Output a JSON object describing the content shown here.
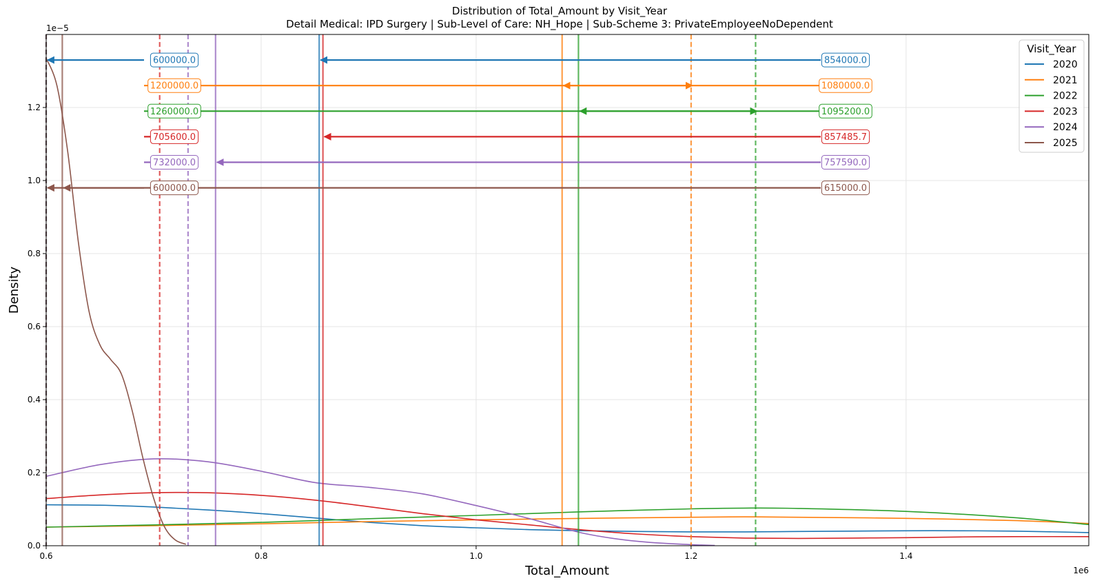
{
  "chart_data": {
    "type": "line",
    "title": "Distribution of Total_Amount by Visit_Year",
    "subtitle": "Detail Medical: IPD Surgery | Sub-Level of Care: NH_Hope | Sub-Scheme 3: PrivateEmployeeNoDependent",
    "xlabel": "Total_Amount",
    "ylabel": "Density",
    "x_offset_label": "1e6",
    "y_offset_label": "1e−5",
    "xlim": [
      600000,
      1570000
    ],
    "ylim": [
      0,
      1.4e-05
    ],
    "x_ticks": [
      {
        "value": 600000,
        "label": "0.6"
      },
      {
        "value": 800000,
        "label": "0.8"
      },
      {
        "value": 1000000,
        "label": "1.0"
      },
      {
        "value": 1200000,
        "label": "1.2"
      },
      {
        "value": 1400000,
        "label": "1.4"
      }
    ],
    "y_ticks": [
      {
        "value": 0,
        "label": "0.0"
      },
      {
        "value": 2e-06,
        "label": "0.2"
      },
      {
        "value": 4e-06,
        "label": "0.4"
      },
      {
        "value": 6e-06,
        "label": "0.6"
      },
      {
        "value": 8e-06,
        "label": "0.8"
      },
      {
        "value": 1e-05,
        "label": "1.0"
      },
      {
        "value": 1.2e-05,
        "label": "1.2"
      }
    ],
    "grid": true,
    "legend": {
      "title": "Visit_Year",
      "position": "top-right"
    },
    "series": [
      {
        "name": "2020",
        "color": "#1f77b4",
        "mean": 854000,
        "median": 600000,
        "mean_label": "854000.0",
        "median_label": "600000.0",
        "annotation_y": 1.33e-05,
        "points": [
          [
            600000,
            1.12e-06
          ],
          [
            650000,
            1.11e-06
          ],
          [
            700000,
            1.06e-06
          ],
          [
            750000,
            9.8e-07
          ],
          [
            800000,
            8.8e-07
          ],
          [
            850000,
            7.6e-07
          ],
          [
            900000,
            6.4e-07
          ],
          [
            950000,
            5.5e-07
          ],
          [
            1000000,
            4.9e-07
          ],
          [
            1050000,
            4.4e-07
          ],
          [
            1100000,
            4.1e-07
          ],
          [
            1150000,
            3.9e-07
          ],
          [
            1200000,
            3.8e-07
          ],
          [
            1250000,
            3.8e-07
          ],
          [
            1300000,
            3.9e-07
          ],
          [
            1350000,
            4e-07
          ],
          [
            1400000,
            4.1e-07
          ],
          [
            1450000,
            4.1e-07
          ],
          [
            1500000,
            4e-07
          ],
          [
            1570000,
            3.6e-07
          ]
        ]
      },
      {
        "name": "2021",
        "color": "#ff7f0e",
        "mean": 1080000,
        "median": 1200000,
        "mean_label": "1080000.0",
        "median_label": "1200000.0",
        "annotation_y": 1.26e-05,
        "points": [
          [
            600000,
            5.1e-07
          ],
          [
            700000,
            5.5e-07
          ],
          [
            800000,
            6e-07
          ],
          [
            900000,
            6.6e-07
          ],
          [
            1000000,
            7.1e-07
          ],
          [
            1100000,
            7.5e-07
          ],
          [
            1200000,
            7.8e-07
          ],
          [
            1250000,
            7.9e-07
          ],
          [
            1300000,
            7.8e-07
          ],
          [
            1400000,
            7.5e-07
          ],
          [
            1500000,
            6.9e-07
          ],
          [
            1570000,
            6.1e-07
          ]
        ]
      },
      {
        "name": "2022",
        "color": "#2ca02c",
        "mean": 1095200,
        "median": 1260000,
        "mean_label": "1095200.0",
        "median_label": "1260000.0",
        "annotation_y": 1.19e-05,
        "points": [
          [
            600000,
            5.1e-07
          ],
          [
            700000,
            5.7e-07
          ],
          [
            800000,
            6.4e-07
          ],
          [
            900000,
            7.4e-07
          ],
          [
            1000000,
            8.3e-07
          ],
          [
            1100000,
            9.3e-07
          ],
          [
            1200000,
            1.01e-06
          ],
          [
            1250000,
            1.03e-06
          ],
          [
            1300000,
            1.02e-06
          ],
          [
            1400000,
            9.4e-07
          ],
          [
            1500000,
            7.7e-07
          ],
          [
            1570000,
            5.8e-07
          ]
        ]
      },
      {
        "name": "2023",
        "color": "#d62728",
        "mean": 857485.7,
        "median": 705600,
        "mean_label": "857485.7",
        "median_label": "705600.0",
        "annotation_y": 1.12e-05,
        "points": [
          [
            600000,
            1.29e-06
          ],
          [
            650000,
            1.39e-06
          ],
          [
            700000,
            1.45e-06
          ],
          [
            750000,
            1.45e-06
          ],
          [
            800000,
            1.38e-06
          ],
          [
            850000,
            1.25e-06
          ],
          [
            900000,
            1.07e-06
          ],
          [
            950000,
            8.8e-07
          ],
          [
            1000000,
            7.1e-07
          ],
          [
            1050000,
            5.7e-07
          ],
          [
            1100000,
            4.3e-07
          ],
          [
            1150000,
            3.2e-07
          ],
          [
            1200000,
            2.5e-07
          ],
          [
            1250000,
            2.1e-07
          ],
          [
            1300000,
            2e-07
          ],
          [
            1350000,
            2.1e-07
          ],
          [
            1400000,
            2.2e-07
          ],
          [
            1450000,
            2.4e-07
          ],
          [
            1500000,
            2.5e-07
          ],
          [
            1570000,
            2.5e-07
          ]
        ]
      },
      {
        "name": "2024",
        "color": "#9467bd",
        "mean": 757590,
        "median": 732000,
        "mean_label": "757590.0",
        "median_label": "732000.0",
        "annotation_y": 1.05e-05,
        "points": [
          [
            600000,
            1.9e-06
          ],
          [
            650000,
            2.22e-06
          ],
          [
            700000,
            2.38e-06
          ],
          [
            750000,
            2.3e-06
          ],
          [
            800000,
            2.04e-06
          ],
          [
            850000,
            1.73e-06
          ],
          [
            900000,
            1.6e-06
          ],
          [
            950000,
            1.42e-06
          ],
          [
            1000000,
            1.1e-06
          ],
          [
            1050000,
            7.4e-07
          ],
          [
            1100000,
            3.4e-07
          ],
          [
            1150000,
            1.2e-07
          ],
          [
            1200000,
            3e-08
          ],
          [
            1222000,
            1e-08
          ]
        ]
      },
      {
        "name": "2025",
        "color": "#8c564b",
        "mean": 615000,
        "median": 600000,
        "mean_label": "615000.0",
        "median_label": "600000.0",
        "annotation_y": 9.8e-06,
        "points": [
          [
            600000,
            1.335e-05
          ],
          [
            610000,
            1.26e-05
          ],
          [
            620000,
            1.08e-05
          ],
          [
            630000,
            8.3e-06
          ],
          [
            640000,
            6.4e-06
          ],
          [
            650000,
            5.5e-06
          ],
          [
            660000,
            5.1e-06
          ],
          [
            670000,
            4.7e-06
          ],
          [
            680000,
            3.7e-06
          ],
          [
            690000,
            2.4e-06
          ],
          [
            700000,
            1.3e-06
          ],
          [
            710000,
            5.2e-07
          ],
          [
            720000,
            1.6e-07
          ],
          [
            730000,
            4e-08
          ]
        ]
      }
    ]
  }
}
